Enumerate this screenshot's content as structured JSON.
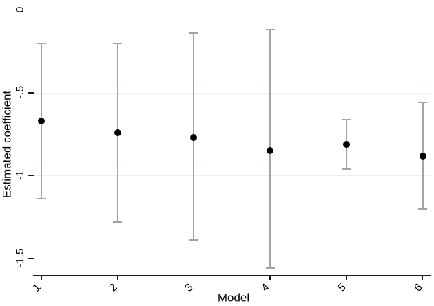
{
  "chart_data": {
    "type": "scatter",
    "subtype": "coefficient-plot-with-error-bars",
    "title": "",
    "xlabel": "Model",
    "ylabel": "Estimated coefficient",
    "categories": [
      "1",
      "2",
      "3",
      "4",
      "5",
      "6"
    ],
    "series": [
      {
        "name": "Estimated coefficient",
        "points": [
          {
            "model": "1",
            "estimate": -0.67,
            "ci_low": -1.14,
            "ci_high": -0.2
          },
          {
            "model": "2",
            "estimate": -0.74,
            "ci_low": -1.28,
            "ci_high": -0.2
          },
          {
            "model": "3",
            "estimate": -0.77,
            "ci_low": -1.39,
            "ci_high": -0.14
          },
          {
            "model": "4",
            "estimate": -0.85,
            "ci_low": -1.56,
            "ci_high": -0.12
          },
          {
            "model": "5",
            "estimate": -0.81,
            "ci_low": -0.96,
            "ci_high": -0.66
          },
          {
            "model": "6",
            "estimate": -0.88,
            "ci_low": -1.2,
            "ci_high": -0.56
          }
        ]
      }
    ],
    "yticks": [
      0,
      -0.5,
      -1,
      -1.5
    ],
    "ytick_labels": [
      "0",
      "-.5",
      "-1",
      "-1.5"
    ],
    "ylim": [
      -1.6,
      0.04
    ],
    "grid": true,
    "legend": "none",
    "colors": {
      "point": "#000000",
      "ci_line": "#a3a3a3",
      "gridline": "#e8f1f2",
      "axis": "#1a1a1a",
      "background": "#ffffff",
      "text": "#000000"
    }
  }
}
